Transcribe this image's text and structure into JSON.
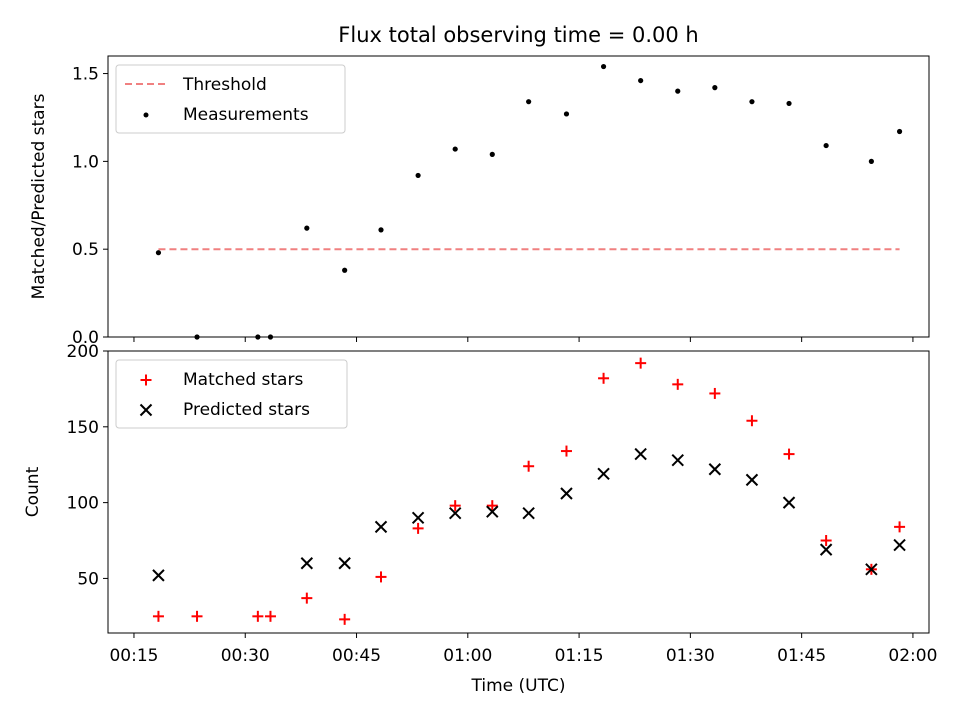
{
  "chart_data": [
    {
      "type": "scatter",
      "title": "Flux total observing time = 0.00 h",
      "ylabel": "Matched/Predicted stars",
      "xlabel": "",
      "xlim": [
        "00:11:30",
        "02:02:10"
      ],
      "ylim": [
        0,
        1.6
      ],
      "y_ticks": [
        "0.0",
        "0.5",
        "1.0",
        "1.5"
      ],
      "grid": false,
      "legend_position": "upper-left",
      "threshold": {
        "name": "Threshold",
        "value": 0.5,
        "x_range": [
          "00:18:18",
          "01:58:12"
        ],
        "color": "#f08080",
        "style": "dashed"
      },
      "series": [
        {
          "name": "Measurements",
          "color": "#000000",
          "marker": "dot",
          "x": [
            "00:18:18",
            "00:23:30",
            "00:31:42",
            "00:33:24",
            "00:38:18",
            "00:43:24",
            "00:48:18",
            "00:53:18",
            "00:58:18",
            "01:03:18",
            "01:08:12",
            "01:13:18",
            "01:18:18",
            "01:23:18",
            "01:28:18",
            "01:33:18",
            "01:38:18",
            "01:43:18",
            "01:48:18",
            "01:54:24",
            "01:58:12"
          ],
          "values": [
            0.48,
            0.0,
            0.0,
            0.0,
            0.62,
            0.38,
            0.61,
            0.92,
            1.07,
            1.04,
            1.34,
            1.27,
            1.54,
            1.46,
            1.4,
            1.42,
            1.34,
            1.33,
            1.09,
            1.0,
            1.17
          ]
        }
      ]
    },
    {
      "type": "scatter",
      "title": "",
      "ylabel": "Count",
      "xlabel": "Time (UTC)",
      "xlim": [
        "00:11:30",
        "02:02:10"
      ],
      "ylim": [
        14,
        200
      ],
      "y_ticks": [
        "50",
        "100",
        "150",
        "200"
      ],
      "x_ticks": [
        "00:15",
        "00:30",
        "00:45",
        "01:00",
        "01:15",
        "01:30",
        "01:45",
        "02:00"
      ],
      "grid": false,
      "legend_position": "upper-left",
      "series": [
        {
          "name": "Matched stars",
          "color": "#ff0000",
          "marker": "plus",
          "x": [
            "00:18:18",
            "00:23:30",
            "00:31:42",
            "00:33:24",
            "00:38:18",
            "00:43:24",
            "00:48:18",
            "00:53:18",
            "00:58:18",
            "01:03:18",
            "01:08:12",
            "01:13:18",
            "01:18:18",
            "01:23:18",
            "01:28:18",
            "01:33:18",
            "01:38:18",
            "01:43:18",
            "01:48:18",
            "01:54:24",
            "01:58:12"
          ],
          "values": [
            25,
            25,
            25,
            25,
            37,
            23,
            51,
            83,
            98,
            98,
            124,
            134,
            182,
            192,
            178,
            172,
            154,
            132,
            75,
            56,
            84
          ]
        },
        {
          "name": "Predicted stars",
          "color": "#000000",
          "marker": "x",
          "x": [
            "00:18:18",
            "00:38:18",
            "00:43:24",
            "00:48:18",
            "00:53:18",
            "00:58:18",
            "01:03:18",
            "01:08:12",
            "01:13:18",
            "01:18:18",
            "01:23:18",
            "01:28:18",
            "01:33:18",
            "01:38:18",
            "01:43:18",
            "01:48:18",
            "01:54:24",
            "01:58:12"
          ],
          "values": [
            52,
            60,
            60,
            84,
            90,
            93,
            94,
            93,
            106,
            119,
            132,
            128,
            122,
            115,
            100,
            69,
            56,
            72
          ]
        }
      ]
    }
  ]
}
